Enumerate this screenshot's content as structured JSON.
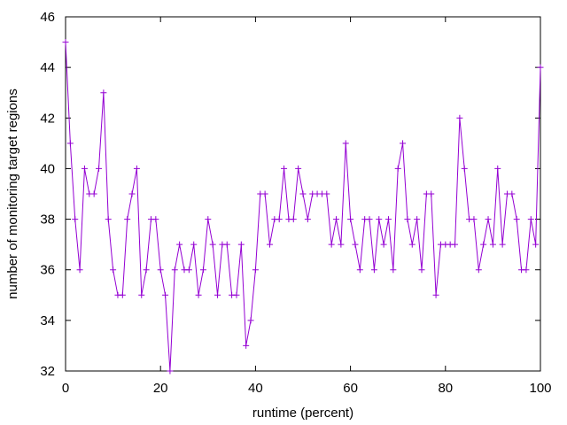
{
  "chart_data": {
    "type": "line",
    "title": "",
    "xlabel": "runtime (percent)",
    "ylabel": "number of monitoring target regions",
    "xlim": [
      0,
      100
    ],
    "ylim": [
      32,
      46
    ],
    "xticks": [
      0,
      20,
      40,
      60,
      80,
      100
    ],
    "yticks": [
      32,
      34,
      36,
      38,
      40,
      42,
      44,
      46
    ],
    "grid": false,
    "legend": "none",
    "marker": "plus",
    "series": [
      {
        "color": "#9400d3",
        "x": [
          0,
          1,
          2,
          3,
          4,
          5,
          6,
          7,
          8,
          9,
          10,
          11,
          12,
          13,
          14,
          15,
          16,
          17,
          18,
          19,
          20,
          21,
          22,
          23,
          24,
          25,
          26,
          27,
          28,
          29,
          30,
          31,
          32,
          33,
          34,
          35,
          36,
          37,
          38,
          39,
          40,
          41,
          42,
          43,
          44,
          45,
          46,
          47,
          48,
          49,
          50,
          51,
          52,
          53,
          54,
          55,
          56,
          57,
          58,
          59,
          60,
          61,
          62,
          63,
          64,
          65,
          66,
          67,
          68,
          69,
          70,
          71,
          72,
          73,
          74,
          75,
          76,
          77,
          78,
          79,
          80,
          81,
          82,
          83,
          84,
          85,
          86,
          87,
          88,
          89,
          90,
          91,
          92,
          93,
          94,
          95,
          96,
          97,
          98,
          99,
          100
        ],
        "y": [
          45,
          41,
          38,
          36,
          40,
          39,
          39,
          40,
          43,
          38,
          36,
          35,
          35,
          38,
          39,
          40,
          35,
          36,
          38,
          38,
          36,
          35,
          32,
          36,
          37,
          36,
          36,
          37,
          35,
          36,
          38,
          37,
          35,
          37,
          37,
          35,
          35,
          37,
          33,
          34,
          36,
          39,
          39,
          37,
          38,
          38,
          40,
          38,
          38,
          40,
          39,
          38,
          39,
          39,
          39,
          39,
          37,
          38,
          37,
          41,
          38,
          37,
          36,
          38,
          38,
          36,
          38,
          37,
          38,
          36,
          40,
          41,
          38,
          37,
          38,
          36,
          39,
          39,
          35,
          37,
          37,
          37,
          37,
          42,
          40,
          38,
          38,
          36,
          37,
          38,
          37,
          40,
          37,
          39,
          39,
          38,
          36,
          36,
          38,
          37,
          44
        ]
      }
    ]
  }
}
